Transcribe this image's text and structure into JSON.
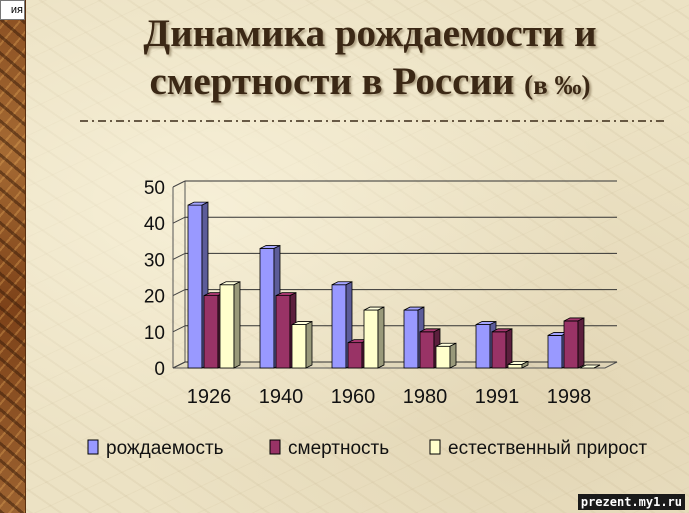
{
  "corner_tab": "ия",
  "title": {
    "line1": "Динамика рождаемости и",
    "line2": "смертности в России",
    "unit": "(в ‰)"
  },
  "watermark": "prezent.my1.ru",
  "colors": {
    "rule": "#3b2a18",
    "series": [
      "#9999ff",
      "#993366",
      "#ffffcc"
    ]
  },
  "chart_data": {
    "type": "bar",
    "title": "",
    "xlabel": "",
    "ylabel": "",
    "ylim": [
      0,
      50
    ],
    "yticks": [
      0,
      10,
      20,
      30,
      40,
      50
    ],
    "categories": [
      "1926",
      "1940",
      "1960",
      "1980",
      "1991",
      "1998"
    ],
    "series": [
      {
        "name": "рождаемость",
        "values": [
          45,
          33,
          23,
          16,
          12,
          9
        ]
      },
      {
        "name": "смертность",
        "values": [
          20,
          20,
          7,
          10,
          10,
          13
        ]
      },
      {
        "name": "естественный прирост",
        "values": [
          23,
          12,
          16,
          6,
          1,
          0
        ]
      }
    ],
    "style": "3d-clustered-column",
    "grid": true,
    "legend": "bottom"
  }
}
